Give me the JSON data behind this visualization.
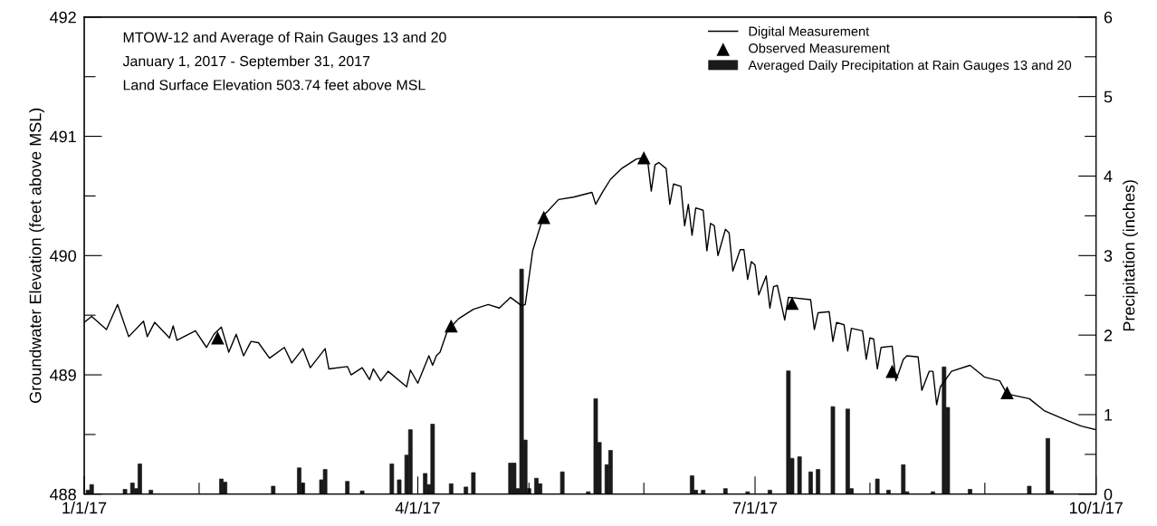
{
  "chart_data": {
    "type": "line",
    "ylabel": "Groundwater Elevation (feet above MSL)",
    "y2label": "Precipitation (inches)",
    "annotations": [
      "MTOW-12 and Average of Rain Gauges 13 and 20",
      "January 1, 2017 - September 31, 2017",
      "Land Surface Elevation 503.74 feet above MSL"
    ],
    "xlim": [
      "2017-01-01",
      "2017-10-01"
    ],
    "xticks": [
      {
        "value": "2017-01-01",
        "label": "1/1/17"
      },
      {
        "value": "2017-02-01",
        "label": null
      },
      {
        "value": "2017-03-01",
        "label": null
      },
      {
        "value": "2017-04-01",
        "label": "4/1/17"
      },
      {
        "value": "2017-05-01",
        "label": null
      },
      {
        "value": "2017-06-01",
        "label": null
      },
      {
        "value": "2017-07-01",
        "label": "7/1/17"
      },
      {
        "value": "2017-08-01",
        "label": null
      },
      {
        "value": "2017-09-01",
        "label": null
      },
      {
        "value": "2017-10-01",
        "label": "10/1/17"
      }
    ],
    "ylim": [
      488,
      492
    ],
    "yticks": [
      488,
      {
        "value": 488.5,
        "label": null
      },
      489,
      {
        "value": 489.5,
        "label": null
      },
      490,
      {
        "value": 490.5,
        "label": null
      },
      491,
      {
        "value": 491.5,
        "label": null
      },
      492
    ],
    "y2lim": [
      0,
      6
    ],
    "y2ticks": [
      0,
      {
        "value": 0.5,
        "label": null
      },
      1,
      {
        "value": 1.5,
        "label": null
      },
      2,
      {
        "value": 2.5,
        "label": null
      },
      3,
      {
        "value": 3.5,
        "label": null
      },
      4,
      {
        "value": 4.5,
        "label": null
      },
      5,
      {
        "value": 5.5,
        "label": null
      },
      6
    ],
    "grid": false,
    "legend": "top right",
    "series": [
      {
        "name": "Digital Measurement",
        "color": "#000000",
        "marker": "none",
        "line_style": "solid",
        "x": [
          "2017-01-01",
          "2017-01-03",
          "2017-01-07",
          "2017-01-10",
          "2017-01-13",
          "2017-01-17",
          "2017-01-18",
          "2017-01-20",
          "2017-01-24",
          "2017-01-25",
          "2017-01-26",
          "2017-01-31",
          "2017-02-03",
          "2017-02-05",
          "2017-02-07",
          "2017-02-09",
          "2017-02-11",
          "2017-02-13",
          "2017-02-15",
          "2017-02-17",
          "2017-02-20",
          "2017-02-24",
          "2017-02-26",
          "2017-03-01",
          "2017-03-03",
          "2017-03-07",
          "2017-03-08",
          "2017-03-13",
          "2017-03-14",
          "2017-03-17",
          "2017-03-19",
          "2017-03-20",
          "2017-03-22",
          "2017-03-24",
          "2017-03-29",
          "2017-03-30",
          "2017-04-01",
          "2017-04-04",
          "2017-04-05",
          "2017-04-06",
          "2017-04-07",
          "2017-04-09",
          "2017-04-12",
          "2017-04-16",
          "2017-04-20",
          "2017-04-23",
          "2017-04-26",
          "2017-04-29",
          "2017-04-30",
          "2017-05-02",
          "2017-05-05",
          "2017-05-06",
          "2017-05-09",
          "2017-05-13",
          "2017-05-18",
          "2017-05-19",
          "2017-05-21",
          "2017-05-23",
          "2017-05-26",
          "2017-05-30",
          "2017-06-01",
          "2017-06-02",
          "2017-06-03",
          "2017-06-04",
          "2017-06-05",
          "2017-06-07",
          "2017-06-08",
          "2017-06-09",
          "2017-06-11",
          "2017-06-12",
          "2017-06-13",
          "2017-06-14",
          "2017-06-15",
          "2017-06-17",
          "2017-06-18",
          "2017-06-19",
          "2017-06-20",
          "2017-06-21",
          "2017-06-23",
          "2017-06-24",
          "2017-06-25",
          "2017-06-27",
          "2017-06-28",
          "2017-06-29",
          "2017-06-30",
          "2017-07-01",
          "2017-07-02",
          "2017-07-04",
          "2017-07-05",
          "2017-07-06",
          "2017-07-07",
          "2017-07-09",
          "2017-07-10",
          "2017-07-16",
          "2017-07-17",
          "2017-07-18",
          "2017-07-21",
          "2017-07-22",
          "2017-07-23",
          "2017-07-25",
          "2017-07-26",
          "2017-07-27",
          "2017-07-30",
          "2017-07-31",
          "2017-08-01",
          "2017-08-02",
          "2017-08-03",
          "2017-08-04",
          "2017-08-07",
          "2017-08-08",
          "2017-08-10",
          "2017-08-11",
          "2017-08-14",
          "2017-08-15",
          "2017-08-17",
          "2017-08-18",
          "2017-08-19",
          "2017-08-20",
          "2017-08-23",
          "2017-08-28",
          "2017-09-01",
          "2017-09-05",
          "2017-09-07",
          "2017-09-13",
          "2017-09-17",
          "2017-09-23",
          "2017-09-27",
          "2017-10-01"
        ],
        "values": [
          489.44,
          489.49,
          489.38,
          489.59,
          489.32,
          489.45,
          489.32,
          489.44,
          489.31,
          489.41,
          489.29,
          489.37,
          489.23,
          489.34,
          489.4,
          489.19,
          489.34,
          489.16,
          489.28,
          489.27,
          489.14,
          489.23,
          489.1,
          489.22,
          489.06,
          489.22,
          489.05,
          489.07,
          489.0,
          489.06,
          488.96,
          489.05,
          488.95,
          489.03,
          488.9,
          489.04,
          488.93,
          489.16,
          489.08,
          489.16,
          489.19,
          489.37,
          489.47,
          489.55,
          489.59,
          489.56,
          489.65,
          489.58,
          489.59,
          490.04,
          490.34,
          490.37,
          490.47,
          490.49,
          490.53,
          490.43,
          490.54,
          490.64,
          490.73,
          490.81,
          490.82,
          490.8,
          490.54,
          490.76,
          490.78,
          490.73,
          490.43,
          490.6,
          490.58,
          490.25,
          490.43,
          490.17,
          490.4,
          490.38,
          490.04,
          490.27,
          490.25,
          490.0,
          490.22,
          490.19,
          489.87,
          490.05,
          490.05,
          489.8,
          489.95,
          489.92,
          489.67,
          489.83,
          489.56,
          489.74,
          489.75,
          489.46,
          489.65,
          489.63,
          489.38,
          489.52,
          489.53,
          489.28,
          489.44,
          489.42,
          489.2,
          489.39,
          489.37,
          489.13,
          489.31,
          489.3,
          489.05,
          489.23,
          489.24,
          488.95,
          489.13,
          489.16,
          489.15,
          488.87,
          489.03,
          489.03,
          488.75,
          488.9,
          489.03,
          489.08,
          488.98,
          488.95,
          488.84,
          488.8,
          488.7,
          488.62,
          488.57,
          488.54
        ]
      },
      {
        "name": "Observed Measurement",
        "type": "scatter",
        "color": "#000000",
        "marker": "triangle",
        "x": [
          "2017-02-06",
          "2017-04-10",
          "2017-05-05",
          "2017-06-01",
          "2017-07-11",
          "2017-08-07",
          "2017-09-07"
        ],
        "values": [
          489.31,
          489.41,
          490.32,
          490.82,
          489.6,
          489.03,
          488.85
        ]
      },
      {
        "name": "Averaged Daily Precipitation at Rain Gauges 13 and 20",
        "type": "bar",
        "axis": "y2",
        "color": "#1a1a1a",
        "x": [
          "2017-01-02",
          "2017-01-03",
          "2017-01-12",
          "2017-01-14",
          "2017-01-15",
          "2017-01-16",
          "2017-01-19",
          "2017-02-07",
          "2017-02-08",
          "2017-02-21",
          "2017-02-28",
          "2017-03-01",
          "2017-03-06",
          "2017-03-07",
          "2017-03-13",
          "2017-03-17",
          "2017-03-25",
          "2017-03-27",
          "2017-03-29",
          "2017-03-30",
          "2017-04-03",
          "2017-04-04",
          "2017-04-05",
          "2017-04-10",
          "2017-04-14",
          "2017-04-16",
          "2017-04-26",
          "2017-04-27",
          "2017-04-28",
          "2017-04-29",
          "2017-04-30",
          "2017-05-01",
          "2017-05-03",
          "2017-05-04",
          "2017-05-10",
          "2017-05-17",
          "2017-05-19",
          "2017-05-20",
          "2017-05-22",
          "2017-05-23",
          "2017-06-14",
          "2017-06-15",
          "2017-06-17",
          "2017-06-23",
          "2017-06-29",
          "2017-07-05",
          "2017-07-10",
          "2017-07-11",
          "2017-07-13",
          "2017-07-16",
          "2017-07-18",
          "2017-07-22",
          "2017-07-26",
          "2017-07-27",
          "2017-08-03",
          "2017-08-06",
          "2017-08-10",
          "2017-08-11",
          "2017-08-18",
          "2017-08-21",
          "2017-08-22",
          "2017-08-28",
          "2017-09-13",
          "2017-09-18",
          "2017-09-19"
        ],
        "values": [
          0.05,
          0.12,
          0.06,
          0.14,
          0.07,
          0.38,
          0.05,
          0.19,
          0.15,
          0.1,
          0.33,
          0.14,
          0.18,
          0.31,
          0.16,
          0.04,
          0.38,
          0.18,
          0.49,
          0.81,
          0.26,
          0.12,
          0.88,
          0.13,
          0.09,
          0.27,
          0.39,
          0.39,
          0.07,
          2.83,
          0.68,
          0.07,
          0.2,
          0.13,
          0.28,
          0.03,
          1.2,
          0.65,
          0.37,
          0.55,
          0.23,
          0.05,
          0.05,
          0.07,
          0.03,
          0.05,
          1.55,
          0.45,
          0.47,
          0.28,
          0.31,
          1.1,
          1.07,
          0.07,
          0.19,
          0.05,
          0.37,
          0.03,
          0.03,
          1.6,
          1.09,
          0.06,
          0.1,
          0.7,
          0.04
        ]
      }
    ]
  }
}
